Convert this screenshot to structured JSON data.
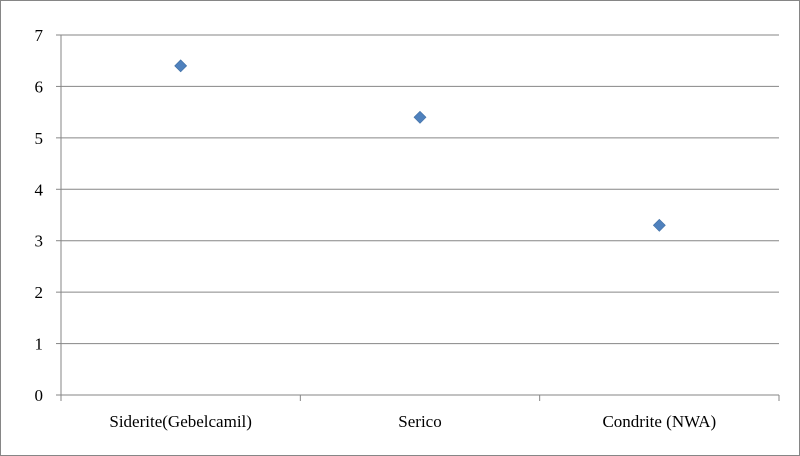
{
  "chart_data": {
    "type": "scatter",
    "title": "",
    "xlabel": "",
    "ylabel": "",
    "categories": [
      "Siderite(Gebelcamil)",
      "Serico",
      "Condrite (NWA)"
    ],
    "values": [
      6.4,
      5.4,
      3.3
    ],
    "ylim": [
      0,
      7
    ],
    "yticks": [
      0,
      1,
      2,
      3,
      4,
      5,
      6,
      7
    ],
    "grid": true,
    "legend": "none",
    "marker": "diamond",
    "colors": {
      "marker": "#4F81BD",
      "gridline": "#868686",
      "axis": "#868686"
    }
  }
}
